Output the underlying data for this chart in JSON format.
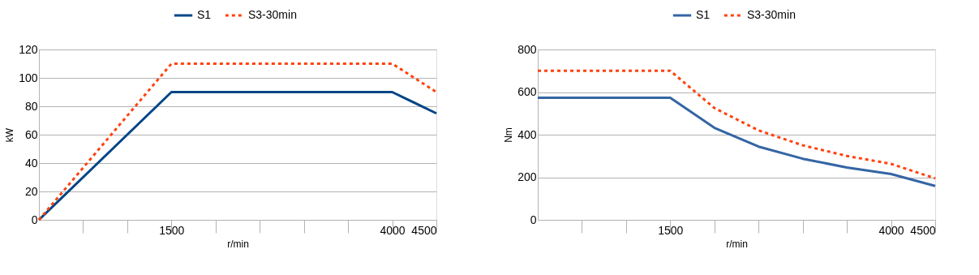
{
  "chart_data": [
    {
      "type": "line",
      "xlabel": "r/min",
      "ylabel": "kW",
      "x": [
        0,
        1500,
        2000,
        2500,
        3000,
        3500,
        4000,
        4500
      ],
      "series": [
        {
          "name": "S1",
          "color": "#004586",
          "line_style": "solid",
          "values": [
            0,
            90,
            90,
            90,
            90,
            90,
            90,
            75
          ]
        },
        {
          "name": "S3-30min",
          "color": "#ff420e",
          "line_style": "dotted",
          "values": [
            0,
            110,
            110,
            110,
            110,
            110,
            110,
            90
          ]
        }
      ],
      "xlim": [
        0,
        4500
      ],
      "xticks": [
        {
          "value": 500,
          "label": null
        },
        {
          "value": 1000,
          "label": null
        },
        1500,
        {
          "value": 2000,
          "label": null
        },
        {
          "value": 2500,
          "label": null
        },
        {
          "value": 3000,
          "label": null
        },
        {
          "value": 3500,
          "label": null
        },
        4000,
        4500
      ],
      "ylim": [
        0,
        120
      ],
      "yticks": [
        0,
        20,
        40,
        60,
        80,
        100,
        120
      ],
      "grid": "y",
      "legend": "top",
      "marker": "none"
    },
    {
      "type": "line",
      "xlabel": "r/min",
      "ylabel": "Nm",
      "x": [
        0,
        500,
        1000,
        1500,
        2000,
        2500,
        3000,
        3500,
        4000,
        4500
      ],
      "series": [
        {
          "name": "S1",
          "color": "#3465a4",
          "line_style": "solid",
          "values": [
            573,
            573,
            573,
            573,
            432,
            344,
            287,
            246,
            215,
            159
          ]
        },
        {
          "name": "S3-30min",
          "color": "#ff420e",
          "line_style": "dotted",
          "values": [
            700,
            700,
            700,
            700,
            525,
            420,
            350,
            300,
            263,
            195
          ]
        }
      ],
      "xlim": [
        0,
        4500
      ],
      "xticks": [
        {
          "value": 500,
          "label": null
        },
        {
          "value": 1000,
          "label": null
        },
        1500,
        {
          "value": 2000,
          "label": null
        },
        {
          "value": 2500,
          "label": null
        },
        {
          "value": 3000,
          "label": null
        },
        {
          "value": 3500,
          "label": null
        },
        4000,
        4500
      ],
      "ylim": [
        0,
        800
      ],
      "yticks": [
        0,
        200,
        400,
        600,
        800
      ],
      "grid": "y",
      "legend": "top",
      "marker": "none"
    }
  ]
}
